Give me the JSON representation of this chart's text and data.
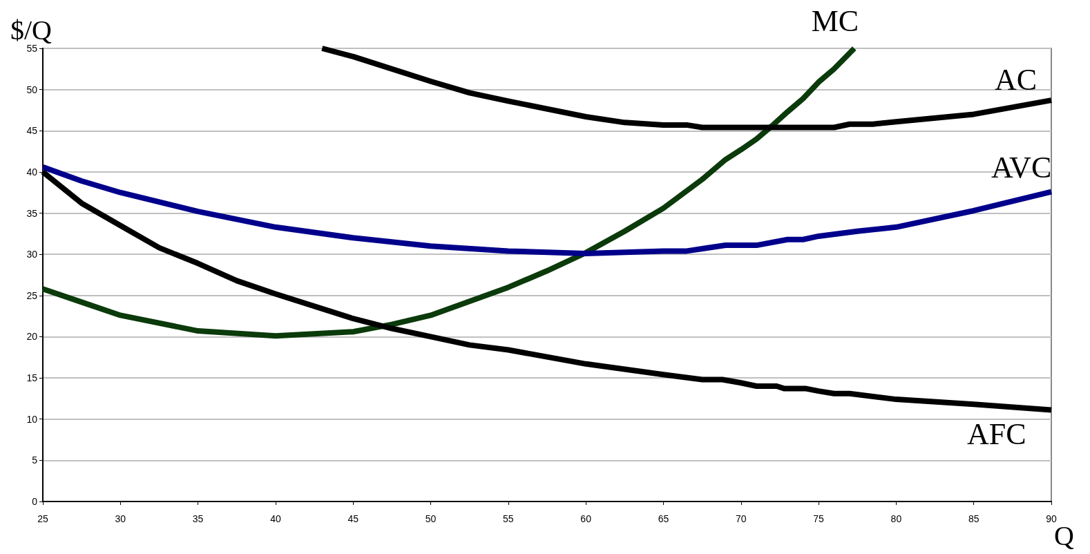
{
  "chart_data": {
    "type": "line",
    "xlabel": "Q",
    "ylabel": "$/Q",
    "xlim": [
      25,
      90
    ],
    "xticks": [
      25,
      30,
      35,
      40,
      45,
      50,
      55,
      60,
      65,
      70,
      75,
      80,
      85,
      90
    ],
    "ylim": [
      0,
      55
    ],
    "yticks": [
      0,
      5,
      10,
      15,
      20,
      25,
      30,
      35,
      40,
      45,
      50,
      55
    ],
    "grid": "y",
    "legend": false,
    "marker": "none",
    "line_style": "solid",
    "series": [
      {
        "name": "MC",
        "color": "#0b3a0b",
        "x": [
          25,
          27.5,
          30,
          35,
          40,
          45,
          47.5,
          50,
          52.5,
          55,
          57.5,
          60,
          62.5,
          65,
          67.5,
          69,
          70,
          71,
          72,
          73,
          74,
          75,
          76,
          77.3
        ],
        "values": [
          25.8,
          24.2,
          22.6,
          20.7,
          20.1,
          20.6,
          21.5,
          22.6,
          24.3,
          26.0,
          28.0,
          30.2,
          32.8,
          35.6,
          39.1,
          41.5,
          42.7,
          44.0,
          45.6,
          47.3,
          48.9,
          50.9,
          52.5,
          55
        ]
      },
      {
        "name": "AC",
        "color": "#000000",
        "x": [
          43,
          45,
          50,
          52.5,
          55,
          60,
          62.5,
          65,
          66.5,
          67.5,
          70,
          75,
          76,
          77,
          78.5,
          80,
          85,
          90
        ],
        "values": [
          55,
          54,
          51,
          49.6,
          48.6,
          46.7,
          46,
          45.7,
          45.7,
          45.4,
          45.4,
          45.4,
          45.4,
          45.8,
          45.8,
          46.1,
          47.0,
          48.7
        ]
      },
      {
        "name": "AVC",
        "color": "#00008b",
        "x": [
          25,
          27.5,
          30,
          35,
          40,
          45,
          50,
          55,
          60,
          65,
          66.5,
          69,
          71,
          73,
          74,
          75,
          77.5,
          80,
          85,
          90
        ],
        "values": [
          40.6,
          38.9,
          37.5,
          35.2,
          33.3,
          32.0,
          31.0,
          30.4,
          30.1,
          30.4,
          30.4,
          31.1,
          31.1,
          31.8,
          31.8,
          32.2,
          32.8,
          33.3,
          35.3,
          37.6
        ]
      },
      {
        "name": "AFC",
        "color": "#000000",
        "x": [
          25,
          27.5,
          30,
          32.5,
          35,
          37.5,
          40,
          45,
          47.5,
          50,
          52.5,
          55,
          60,
          65,
          67.5,
          68.8,
          70,
          71,
          72.3,
          72.8,
          74.2,
          75,
          76,
          77,
          80,
          85,
          90
        ],
        "values": [
          40,
          36.2,
          33.5,
          30.8,
          28.9,
          26.8,
          25.2,
          22.2,
          21.0,
          20.0,
          19.0,
          18.4,
          16.7,
          15.4,
          14.8,
          14.8,
          14.4,
          14.0,
          14.0,
          13.7,
          13.7,
          13.4,
          13.1,
          13.1,
          12.4,
          11.8,
          11.1
        ]
      }
    ]
  }
}
